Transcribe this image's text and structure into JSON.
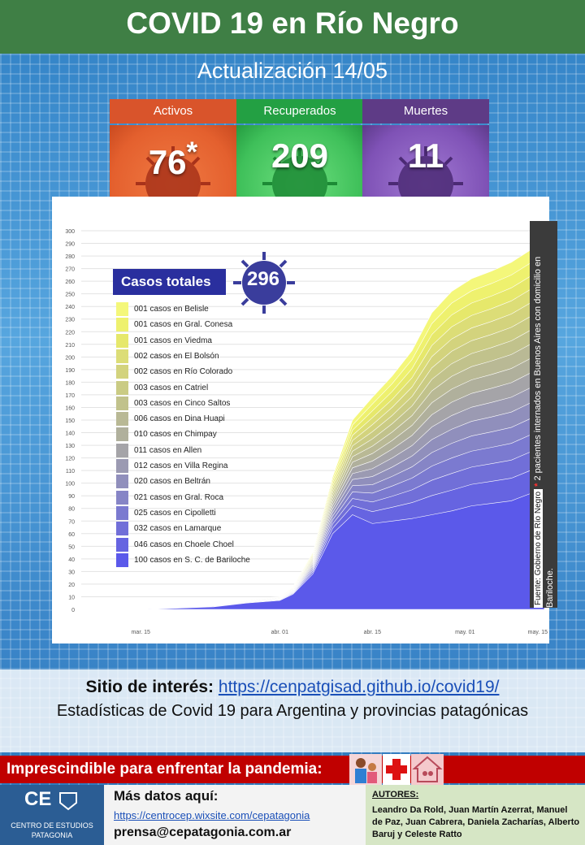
{
  "header": {
    "title": "COVID 19 en Río Negro",
    "subtitle": "Actualización  14/05"
  },
  "stats": [
    {
      "label": "Activos",
      "value": "76",
      "mark": "*",
      "color": "#d9542b",
      "body": "#f07a43"
    },
    {
      "label": "Recuperados",
      "value": "209",
      "color": "#23a043",
      "body": "#52cf6a"
    },
    {
      "label": "Muertes",
      "value": "11",
      "color": "#5e3b86",
      "body": "#8b5cc0"
    }
  ],
  "chart_data": {
    "type": "area",
    "title": "Casos totales",
    "total": "296",
    "xticks": [
      "mar. 15",
      "abr. 01",
      "abr. 15",
      "may. 01",
      "may. 15"
    ],
    "yticks": [
      0,
      10,
      20,
      30,
      40,
      50,
      60,
      70,
      80,
      90,
      100,
      110,
      120,
      130,
      140,
      150,
      160,
      170,
      180,
      190,
      200,
      210,
      220,
      230,
      240,
      250,
      260,
      270,
      280,
      290,
      300
    ],
    "ylim": [
      0,
      300
    ],
    "xlim": [
      0,
      70
    ],
    "x": [
      0,
      10,
      20,
      25,
      30,
      32,
      35,
      38,
      41,
      44,
      47,
      50,
      53,
      56,
      59,
      62,
      65,
      68,
      70
    ],
    "total_curve": [
      0,
      0,
      3,
      8,
      10,
      18,
      45,
      105,
      150,
      168,
      185,
      205,
      235,
      252,
      262,
      268,
      275,
      285,
      293
    ],
    "bariloche_curve": [
      0,
      0,
      2,
      5,
      7,
      12,
      28,
      60,
      75,
      68,
      70,
      72,
      75,
      78,
      82,
      84,
      86,
      92,
      98
    ],
    "legend": [
      {
        "label": "001 casos en Belisle",
        "color": "#f4f77a"
      },
      {
        "label": "001 casos en Gral. Conesa",
        "color": "#eef16e"
      },
      {
        "label": "001 casos en Viedma",
        "color": "#e6e86b"
      },
      {
        "label": "002 casos en El Bolsón",
        "color": "#dcdd77"
      },
      {
        "label": "002 casos en Río Colorado",
        "color": "#d3d37d"
      },
      {
        "label": "003 casos en Catriel",
        "color": "#cacb84"
      },
      {
        "label": "003 casos en Cinco Saltos",
        "color": "#c1c28c"
      },
      {
        "label": "006 casos en Dina Huapi",
        "color": "#b9b995"
      },
      {
        "label": "010 casos en Chimpay",
        "color": "#b0b09c"
      },
      {
        "label": "011 casos en Allen",
        "color": "#a5a4a8"
      },
      {
        "label": "012 casos en Villa Regina",
        "color": "#9b9ab2"
      },
      {
        "label": "020 casos en Beltrán",
        "color": "#908fbc"
      },
      {
        "label": "021 casos en Gral. Roca",
        "color": "#8685c6"
      },
      {
        "label": "025 casos en Cipolletti",
        "color": "#7b7ad0"
      },
      {
        "label": "032 casos en Lamarque",
        "color": "#716fd8"
      },
      {
        "label": "046 casos en Choele Choel",
        "color": "#6664e1"
      },
      {
        "label": "100 casos en S. C. de Bariloche",
        "color": "#5b59ea"
      }
    ]
  },
  "source": {
    "text": "Fuente: Gobierno de Río Negro",
    "note_mark": "*",
    "note": "2 pacientes internados en Buenos Aires con domicilio en Bariloche."
  },
  "site": {
    "label": "Sitio de interés:",
    "url": "https://cenpatgisad.github.io/covid19/",
    "description": "Estadísticas de Covid 19 para Argentina y provincias patagónicas"
  },
  "banner": {
    "text": "Imprescindible para enfrentar la pandemia:"
  },
  "footer": {
    "logo_short": "CE",
    "logo_name": "CENTRO DE ESTUDIOS PATAGONIA",
    "more_label": "Más datos aquí:",
    "more_url": "https://centrocep.wixsite.com/cepatagonia",
    "email": "prensa@cepatagonia.com.ar",
    "authors_label": "AUTORES:",
    "authors": "Leandro Da Rold, Juan Martín Azerrat, Manuel de Paz, Juan Cabrera, Daniela Zacharías, Alberto Baruj y Celeste Ratto"
  }
}
